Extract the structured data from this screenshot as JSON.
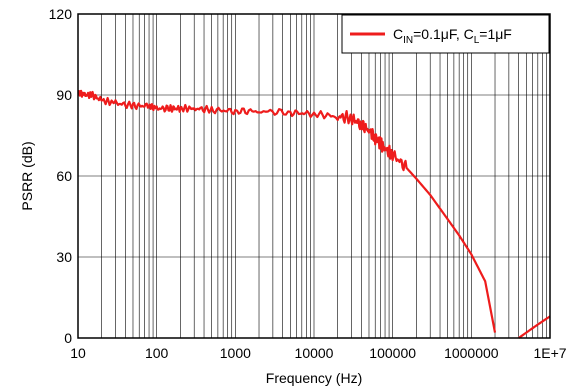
{
  "chart_data": {
    "type": "line",
    "xlabel": "Frequency (Hz)",
    "ylabel": "PSRR (dB)",
    "x_scale": "log",
    "xlim": [
      10,
      10000000
    ],
    "ylim": [
      0,
      120
    ],
    "x_ticks": [
      10,
      100,
      1000,
      10000,
      100000,
      1000000,
      10000000
    ],
    "x_tick_labels": [
      "10",
      "100",
      "1000",
      "10000",
      "100000",
      "1000000",
      "1E+7"
    ],
    "y_ticks": [
      0,
      30,
      60,
      90,
      120
    ],
    "y_tick_labels": [
      "0",
      "30",
      "60",
      "90",
      "120"
    ],
    "grid": true,
    "legend_position": "top-right",
    "series": [
      {
        "name": "CIN=0.1µF, CL=1µF",
        "legend": {
          "c": "C",
          "in_sub": "IN",
          "mid": "=0.1μF, C",
          "l_sub": "L",
          "end": "=1μF"
        },
        "color": "#ee1c1c",
        "segments": [
          {
            "x": [
              10,
              12,
              15,
              20,
              30,
              50,
              80,
              100,
              150,
              200,
              300,
              500,
              1000,
              2000,
              5000,
              10000,
              20000,
              30000,
              40000,
              50000,
              60000,
              70000,
              80000,
              100000,
              150000,
              200000,
              300000,
              500000,
              700000,
              1000000,
              1500000,
              2000000
            ],
            "y": [
              91,
              90,
              90,
              88,
              87,
              86,
              86,
              85,
              85,
              85,
              85,
              84.5,
              84,
              84,
              83.5,
              83,
              82,
              81.5,
              79,
              77,
              74,
              72,
              70,
              68,
              63,
              59,
              53,
              44,
              38,
              31,
              21,
              2
            ]
          },
          {
            "x": [
              4000000,
              5000000,
              7000000,
              10000000
            ],
            "y": [
              0,
              2,
              5,
              8
            ]
          }
        ]
      }
    ]
  }
}
